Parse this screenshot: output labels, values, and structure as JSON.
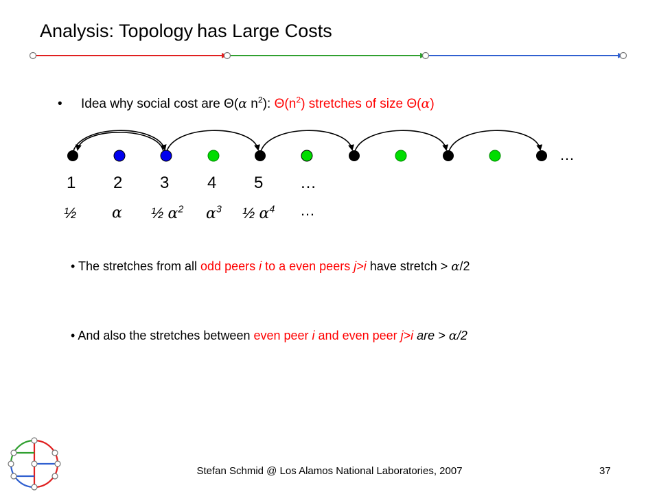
{
  "slide": {
    "title_part1": "Analysis: Topology",
    "title_part2": "has Large Costs",
    "bullet_idea": {
      "prefix": "Idea why social cost are ",
      "theta": "Θ(",
      "alpha": "α",
      "n2": " n",
      "exp2": "2",
      "close": "): ",
      "red_theta": "Θ(n",
      "red_exp": "2",
      "red_mid": ") stretches of size ",
      "red_theta2": "Θ(",
      "red_alpha": "α",
      "red_close": ")"
    },
    "node_numbers": [
      "1",
      "2",
      "3",
      "4",
      "5",
      "…"
    ],
    "top_ellipsis": "…",
    "weights": {
      "w1": "½",
      "w2_alpha": "α",
      "w3_half": "½ ",
      "w3_alpha": "α",
      "w3_exp": "2",
      "w4_alpha": "α",
      "w4_exp": "3",
      "w5_half": "½ ",
      "w5_alpha": "α",
      "w5_exp": "4",
      "w_more": "…"
    },
    "bullet_odd": {
      "p1": "The stretches from all ",
      "p2": "odd peers ",
      "p3": "i",
      "p4": " to a even peers ",
      "p5": "j>i",
      "p6": " have stretch > ",
      "p7": "α",
      "p8": "/2"
    },
    "bullet_even": {
      "p1": "And also the stretches between ",
      "p2": "even peer ",
      "p3": "i",
      "p4": " and even peer ",
      "p5": "j>i",
      "p6": " are > ",
      "p7": "α",
      "p8": "/2"
    },
    "footer": "Stefan Schmid @ Los Alamos National Laboratories, 2007",
    "page_number": "37"
  },
  "colors": {
    "red": "#ff0000",
    "green_node": "#00dd00",
    "blue_node": "#0000ee",
    "black_node": "#000000",
    "rule_red": "#e02020",
    "rule_green": "#30a030",
    "rule_blue": "#3060d0"
  }
}
